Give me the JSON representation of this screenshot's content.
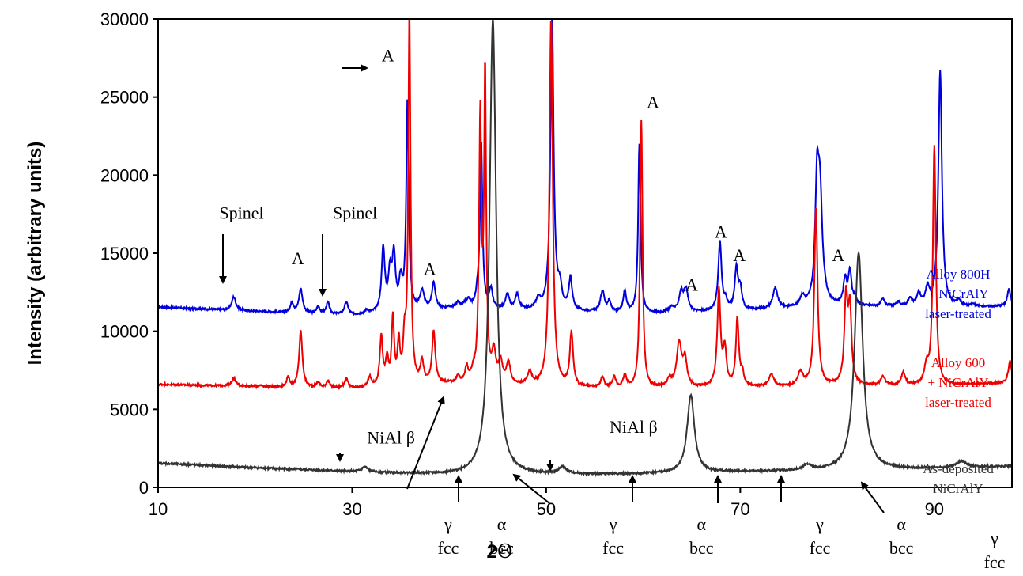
{
  "chart_data": {
    "type": "line",
    "xlabel_prefix": "2",
    "xlabel_symbol": "Θ",
    "ylabel": "Intensity (arbitrary units)",
    "xlim": [
      10,
      98
    ],
    "ylim": [
      0,
      30000
    ],
    "x_ticks": [
      10,
      30,
      50,
      70,
      90
    ],
    "y_ticks": [
      0,
      5000,
      10000,
      15000,
      20000,
      25000,
      30000
    ],
    "series": [
      {
        "name": "Alloy 800H + NiCrAlY laser-treated",
        "legend_lines": [
          "Alloy 800H",
          "+ NiCrAlY",
          "laser-treated"
        ],
        "color": "#0000dd",
        "baseline": [
          [
            10,
            11550
          ],
          [
            30,
            11000
          ],
          [
            40,
            11500
          ],
          [
            50,
            11300
          ],
          [
            60,
            11100
          ],
          [
            70,
            11300
          ],
          [
            80,
            11600
          ],
          [
            90,
            11500
          ],
          [
            98,
            11600
          ]
        ],
        "peaks": [
          [
            17.8,
            12200,
            0.25
          ],
          [
            23.8,
            11800,
            0.2
          ],
          [
            24.7,
            12700,
            0.22
          ],
          [
            26.5,
            11550,
            0.2
          ],
          [
            27.5,
            11800,
            0.2
          ],
          [
            29.4,
            11800,
            0.25
          ],
          [
            31.5,
            11300,
            0.2
          ],
          [
            33.2,
            15200,
            0.2
          ],
          [
            33.9,
            13500,
            0.2
          ],
          [
            34.3,
            14600,
            0.2
          ],
          [
            35.0,
            13000,
            0.2
          ],
          [
            35.7,
            24700,
            0.15
          ],
          [
            37.2,
            12500,
            0.25
          ],
          [
            38.4,
            13100,
            0.2
          ],
          [
            39.5,
            11400,
            0.2
          ],
          [
            40.9,
            11800,
            0.2
          ],
          [
            41.6,
            11700,
            0.2
          ],
          [
            42.0,
            11900,
            0.2
          ],
          [
            42.9,
            12100,
            0.2
          ],
          [
            43.3,
            22000,
            0.15
          ],
          [
            44.3,
            12600,
            0.2
          ],
          [
            46.0,
            12300,
            0.22
          ],
          [
            47.0,
            12300,
            0.22
          ],
          [
            49.2,
            11900,
            0.3
          ],
          [
            50.6,
            30000,
            0.2
          ],
          [
            51.4,
            12500,
            0.25
          ],
          [
            52.5,
            13300,
            0.2
          ],
          [
            55.8,
            12500,
            0.25
          ],
          [
            56.5,
            11800,
            0.2
          ],
          [
            58.1,
            12500,
            0.2
          ],
          [
            59.6,
            22000,
            0.15
          ],
          [
            62.9,
            11500,
            0.3
          ],
          [
            63.9,
            12400,
            0.25
          ],
          [
            64.4,
            12600,
            0.25
          ],
          [
            67.9,
            15700,
            0.2
          ],
          [
            68.5,
            11800,
            0.2
          ],
          [
            69.6,
            13900,
            0.2
          ],
          [
            70.0,
            12600,
            0.2
          ],
          [
            73.6,
            12700,
            0.3
          ],
          [
            76.4,
            12100,
            0.3
          ],
          [
            77.9,
            17700,
            0.2
          ],
          [
            78.2,
            18900,
            0.3
          ],
          [
            80.8,
            13200,
            0.2
          ],
          [
            81.3,
            13700,
            0.2
          ],
          [
            81.8,
            12000,
            0.2
          ],
          [
            84.7,
            12000,
            0.25
          ],
          [
            86.3,
            11800,
            0.25
          ],
          [
            87.5,
            12000,
            0.25
          ],
          [
            88.4,
            12300,
            0.25
          ],
          [
            89.3,
            12600,
            0.25
          ],
          [
            90.6,
            26600,
            0.22
          ],
          [
            92.5,
            11900,
            0.25
          ],
          [
            94.0,
            11700,
            0.25
          ],
          [
            97.7,
            12700,
            0.2
          ]
        ]
      },
      {
        "name": "Alloy 600 + NiCrAlY laser-treated",
        "legend_lines": [
          "Alloy 600",
          "+ NiCrAlY",
          "laser-treated"
        ],
        "color": "#ee0000",
        "baseline": [
          [
            10,
            6600
          ],
          [
            30,
            6300
          ],
          [
            40,
            6600
          ],
          [
            50,
            6400
          ],
          [
            60,
            6300
          ],
          [
            70,
            6400
          ],
          [
            80,
            6500
          ],
          [
            90,
            6500
          ],
          [
            98,
            6700
          ]
        ],
        "peaks": [
          [
            17.8,
            7000,
            0.25
          ],
          [
            20.5,
            6500,
            0.2
          ],
          [
            23.4,
            7000,
            0.2
          ],
          [
            24.7,
            10000,
            0.2
          ],
          [
            26.5,
            6700,
            0.2
          ],
          [
            27.5,
            6800,
            0.2
          ],
          [
            29.4,
            6900,
            0.25
          ],
          [
            31.8,
            7000,
            0.2
          ],
          [
            33.0,
            9500,
            0.18
          ],
          [
            33.6,
            8000,
            0.18
          ],
          [
            34.2,
            10700,
            0.15
          ],
          [
            34.8,
            9000,
            0.15
          ],
          [
            35.4,
            9000,
            0.18
          ],
          [
            35.9,
            30000,
            0.14
          ],
          [
            37.2,
            7900,
            0.2
          ],
          [
            38.4,
            9900,
            0.2
          ],
          [
            40.9,
            7000,
            0.2
          ],
          [
            41.8,
            7500,
            0.2
          ],
          [
            42.5,
            7100,
            0.2
          ],
          [
            43.2,
            23400,
            0.15
          ],
          [
            43.7,
            26000,
            0.13
          ],
          [
            44.6,
            8400,
            0.25
          ],
          [
            45.3,
            7800,
            0.25
          ],
          [
            46.1,
            7800,
            0.25
          ],
          [
            48.3,
            7200,
            0.3
          ],
          [
            50.5,
            30000,
            0.2
          ],
          [
            52.6,
            9800,
            0.2
          ],
          [
            55.8,
            7000,
            0.2
          ],
          [
            57.0,
            7000,
            0.2
          ],
          [
            58.1,
            7100,
            0.2
          ],
          [
            59.8,
            23500,
            0.15
          ],
          [
            62.7,
            6800,
            0.3
          ],
          [
            63.7,
            9100,
            0.3
          ],
          [
            64.3,
            8000,
            0.25
          ],
          [
            67.8,
            12500,
            0.2
          ],
          [
            68.4,
            8700,
            0.2
          ],
          [
            69.7,
            10700,
            0.18
          ],
          [
            70.2,
            7200,
            0.2
          ],
          [
            73.2,
            7200,
            0.3
          ],
          [
            76.2,
            7300,
            0.3
          ],
          [
            77.8,
            17800,
            0.2
          ],
          [
            80.9,
            12000,
            0.2
          ],
          [
            81.3,
            11100,
            0.2
          ],
          [
            84.7,
            7100,
            0.25
          ],
          [
            86.8,
            7300,
            0.25
          ],
          [
            89.2,
            7600,
            0.25
          ],
          [
            90.0,
            21800,
            0.18
          ],
          [
            97.8,
            8100,
            0.2
          ]
        ]
      },
      {
        "name": "As-deposited NiCrAlY",
        "legend_lines": [
          "As-deposited",
          "NiCrAlY"
        ],
        "color": "#333333",
        "baseline": [
          [
            10,
            1550
          ],
          [
            20,
            1250
          ],
          [
            30,
            1000
          ],
          [
            40,
            800
          ],
          [
            50,
            800
          ],
          [
            60,
            850
          ],
          [
            70,
            1000
          ],
          [
            80,
            1050
          ],
          [
            90,
            1200
          ],
          [
            98,
            1350
          ]
        ],
        "peaks": [
          [
            31.3,
            1300,
            0.35
          ],
          [
            44.5,
            30000,
            0.4
          ],
          [
            51.7,
            1250,
            0.5
          ],
          [
            60.5,
            900,
            0.4
          ],
          [
            64.9,
            5900,
            0.45
          ],
          [
            76.9,
            1400,
            0.5
          ],
          [
            82.2,
            15000,
            0.5
          ],
          [
            92.8,
            1650,
            0.6
          ]
        ]
      }
    ],
    "annotations": [
      {
        "text": "Spinel",
        "x": 18.6,
        "y": 17200
      },
      {
        "text": "Spinel",
        "x": 30.3,
        "y": 17200
      },
      {
        "text": "A",
        "x": 24.4,
        "y": 14300
      },
      {
        "text": "A",
        "x": 38.0,
        "y": 13600
      },
      {
        "text": "A",
        "x": 33.7,
        "y": 27300
      },
      {
        "text": "A",
        "x": 61.0,
        "y": 24300
      },
      {
        "text": "A",
        "x": 65.0,
        "y": 12600
      },
      {
        "text": "A",
        "x": 68.0,
        "y": 16000
      },
      {
        "text": "A",
        "x": 69.9,
        "y": 14500
      },
      {
        "text": "A",
        "x": 80.1,
        "y": 14500
      },
      {
        "text": "NiAl  β",
        "x": 34.0,
        "y": 2800
      },
      {
        "text": "NiAl  β",
        "x": 59.0,
        "y": 3500
      }
    ],
    "phase_labels": [
      {
        "symbol": "γ",
        "structure": "fcc",
        "x": 39.9
      },
      {
        "symbol": "α",
        "structure": "bcc",
        "x": 45.4
      },
      {
        "symbol": "γ",
        "structure": "fcc",
        "x": 56.9
      },
      {
        "symbol": "α",
        "structure": "bcc",
        "x": 66.0
      },
      {
        "symbol": "γ",
        "structure": "fcc",
        "x": 78.2
      },
      {
        "symbol": "α",
        "structure": "bcc",
        "x": 86.6
      },
      {
        "symbol": "γ",
        "structure": "fcc",
        "x": 98.5
      }
    ]
  }
}
